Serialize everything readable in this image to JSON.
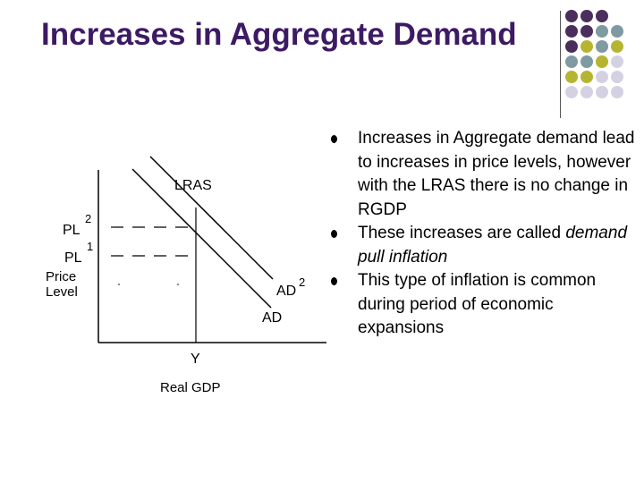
{
  "slide": {
    "title": "Increases in Aggregate Demand"
  },
  "decoration": {
    "dot_colors": {
      "purple": "#4a2f5c",
      "teal": "#7f9aa0",
      "olive": "#b5b532",
      "lavender": "#d4d2e2"
    }
  },
  "bullets": [
    {
      "text": "Increases in Aggregate demand lead to increases in price levels, however with the LRAS there is no change in RGDP"
    },
    {
      "text_before": "These increases are  called ",
      "italic": "demand pull inflation"
    },
    {
      "text": " This type of inflation is common during period of economic expansions"
    }
  ],
  "graph": {
    "lras_label": "LRAS",
    "pl2_label": "PL",
    "pl2_sup": "2",
    "pl1_label": "PL",
    "pl1_sup": "1",
    "y_axis_label_line1": "Price",
    "y_axis_label_line2": "Level",
    "ad2_label": "AD",
    "ad2_sup": "2",
    "ad_label": "AD",
    "y_tick_label": "Y",
    "x_axis_label": "Real GDP"
  }
}
